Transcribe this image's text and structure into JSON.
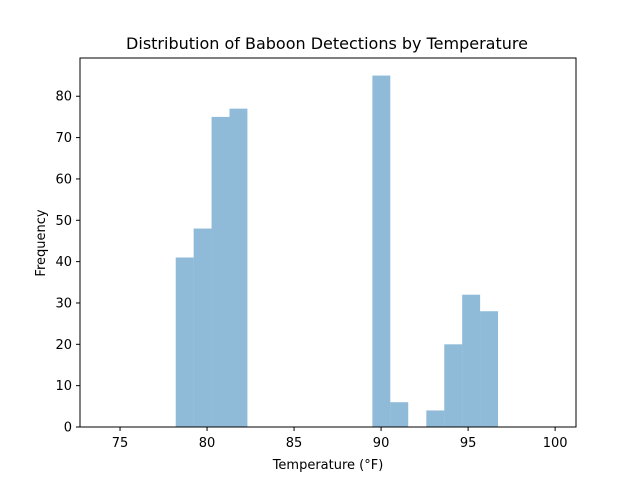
{
  "chart_data": {
    "type": "bar",
    "title": "Distribution of Baboon Detections by Temperature",
    "xlabel": "Temperature (°F)",
    "ylabel": "Frequency",
    "xlim": [
      72.7,
      101.2
    ],
    "ylim": [
      0,
      89.25
    ],
    "x_ticks": [
      75,
      80,
      85,
      90,
      95,
      100
    ],
    "y_ticks": [
      0,
      10,
      20,
      30,
      40,
      50,
      60,
      70,
      80
    ],
    "grid": false,
    "legend": "none",
    "bar_color": "#1f77b4",
    "bar_alpha": 0.5,
    "bins": [
      {
        "x0": 78.2,
        "x1": 79.23,
        "value": 41
      },
      {
        "x0": 79.23,
        "x1": 80.26,
        "value": 48
      },
      {
        "x0": 80.26,
        "x1": 81.29,
        "value": 75
      },
      {
        "x0": 81.29,
        "x1": 82.32,
        "value": 77
      },
      {
        "x0": 89.5,
        "x1": 90.53,
        "value": 85
      },
      {
        "x0": 90.53,
        "x1": 91.56,
        "value": 6
      },
      {
        "x0": 92.6,
        "x1": 93.63,
        "value": 4
      },
      {
        "x0": 93.63,
        "x1": 94.66,
        "value": 20
      },
      {
        "x0": 94.66,
        "x1": 95.69,
        "value": 32
      },
      {
        "x0": 95.69,
        "x1": 96.72,
        "value": 28
      }
    ]
  }
}
